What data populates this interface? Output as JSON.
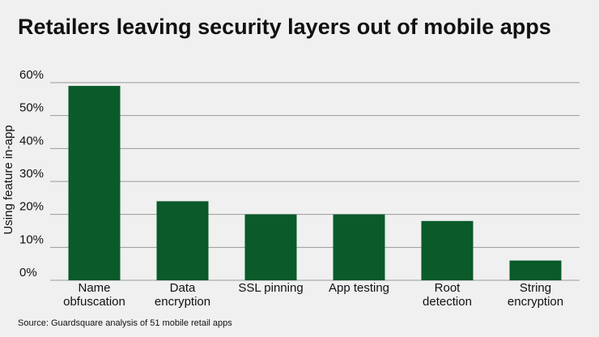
{
  "chart_data": {
    "type": "bar",
    "title": "Retailers leaving security layers out of mobile apps",
    "ylabel": "Using feature in-app",
    "xlabel": "",
    "categories": [
      [
        "Name",
        "obfuscation"
      ],
      [
        "Data",
        "encryption"
      ],
      [
        "SSL pinning"
      ],
      [
        "App testing"
      ],
      [
        "Root",
        "detection"
      ],
      [
        "String",
        "encryption"
      ]
    ],
    "values": [
      59,
      24,
      20,
      20,
      18,
      6
    ],
    "ylim": [
      0,
      60
    ],
    "yticks": [
      0,
      10,
      20,
      30,
      40,
      50,
      60
    ],
    "ytick_labels": [
      "0%",
      "10%",
      "20%",
      "30%",
      "40%",
      "50%",
      "60%"
    ],
    "grid": true,
    "colors": {
      "bar": "#0b5a2a",
      "grid": "#9a9a9a",
      "background": "#eff0ef"
    }
  },
  "source": "Source: Guardsquare analysis of 51 mobile retail apps"
}
